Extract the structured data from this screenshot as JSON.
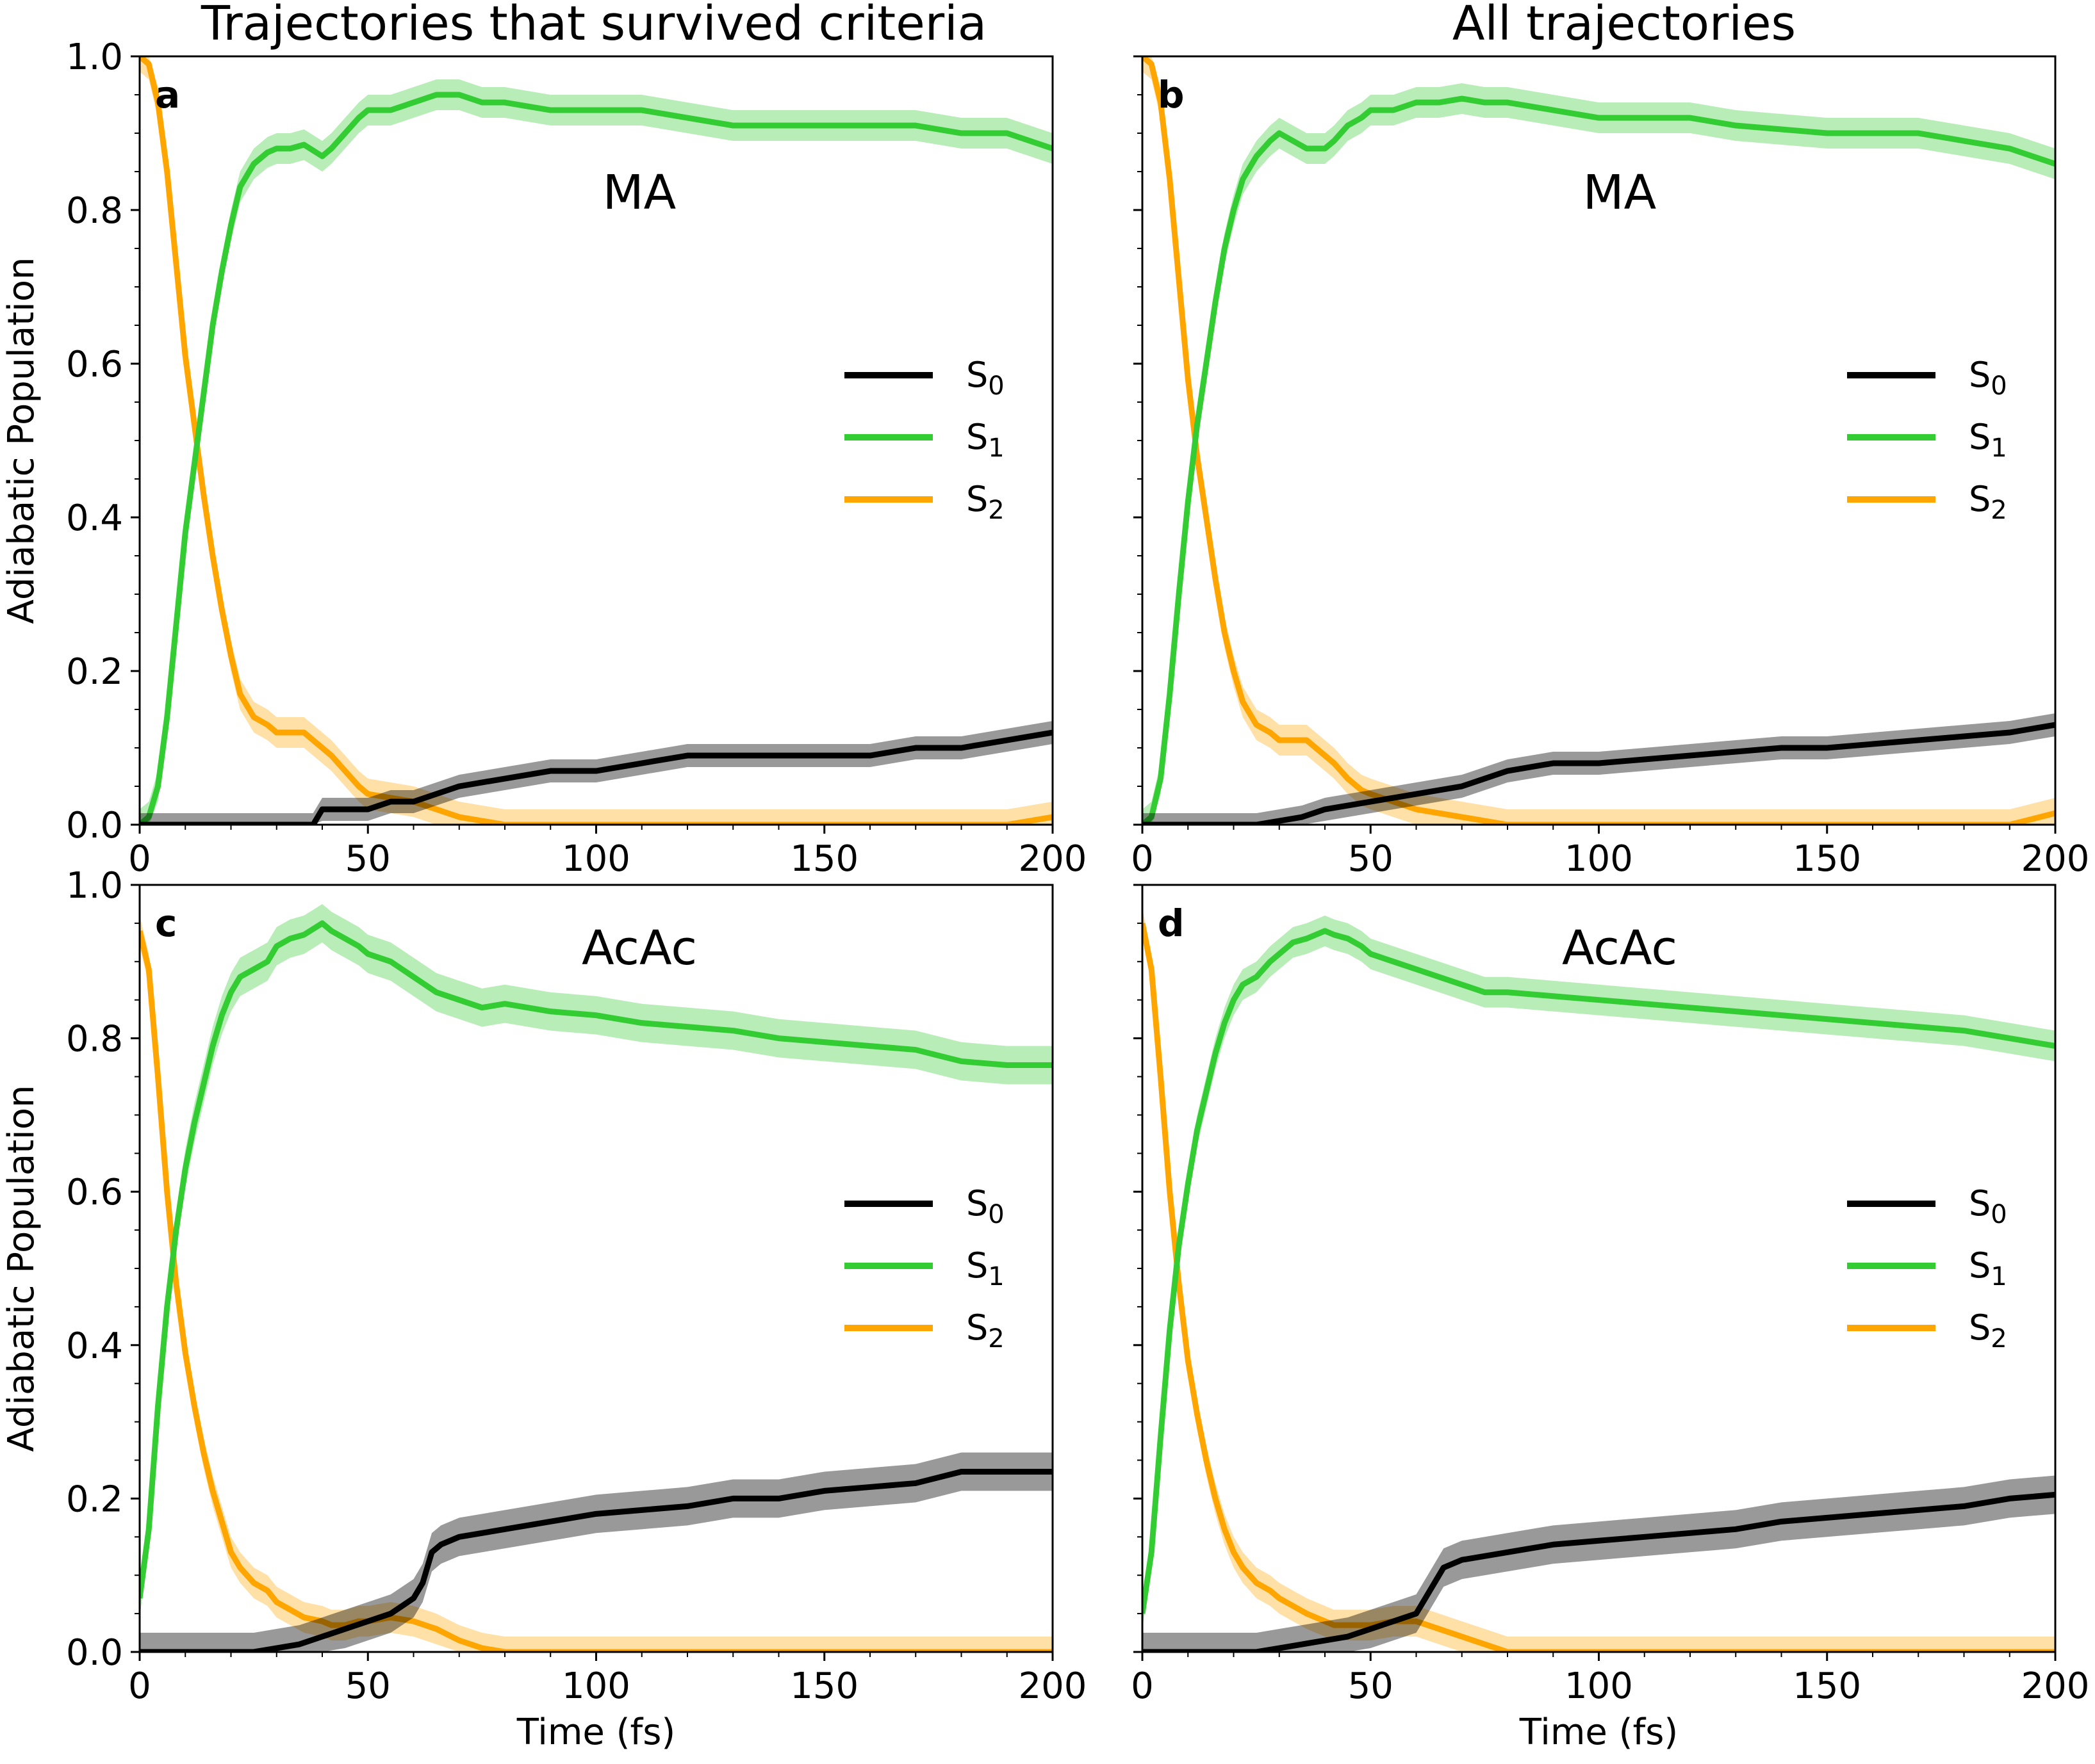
{
  "figure": {
    "column_titles": [
      "Trajectories that survived criteria",
      "All trajectories"
    ],
    "colors": {
      "S0": "#000000",
      "S1": "#33cc33",
      "S2": "#ffa500"
    }
  },
  "chart_data": [
    {
      "type": "line",
      "panel": "a",
      "molecule": "MA",
      "xlabel": "",
      "ylabel": "Adiabatic Population",
      "xlim": [
        0,
        200
      ],
      "ylim": [
        0,
        1.0
      ],
      "xticks": [
        "0",
        "50",
        "100",
        "150",
        "200"
      ],
      "yticks": [
        "0.0",
        "0.2",
        "0.4",
        "0.6",
        "0.8",
        "1.0"
      ],
      "legend": {
        "position": "center-right",
        "entries": [
          {
            "base": "S",
            "sub": "0"
          },
          {
            "base": "S",
            "sub": "1"
          },
          {
            "base": "S",
            "sub": "2"
          }
        ]
      },
      "series": [
        {
          "name": "S0",
          "band": 0.015,
          "x": [
            0,
            38,
            40,
            50,
            55,
            60,
            65,
            70,
            80,
            90,
            100,
            110,
            120,
            130,
            140,
            150,
            160,
            170,
            180,
            190,
            200
          ],
          "y": [
            0,
            0,
            0.02,
            0.02,
            0.03,
            0.03,
            0.04,
            0.05,
            0.06,
            0.07,
            0.07,
            0.08,
            0.09,
            0.09,
            0.09,
            0.09,
            0.09,
            0.1,
            0.1,
            0.11,
            0.12
          ]
        },
        {
          "name": "S1",
          "band": 0.02,
          "x": [
            0,
            2,
            4,
            6,
            8,
            10,
            12,
            14,
            16,
            18,
            20,
            22,
            25,
            28,
            30,
            33,
            36,
            40,
            42,
            45,
            48,
            50,
            55,
            60,
            65,
            70,
            75,
            80,
            90,
            100,
            110,
            120,
            130,
            140,
            150,
            160,
            170,
            180,
            190,
            200
          ],
          "y": [
            0,
            0.01,
            0.05,
            0.14,
            0.26,
            0.38,
            0.47,
            0.56,
            0.65,
            0.72,
            0.78,
            0.83,
            0.86,
            0.875,
            0.88,
            0.88,
            0.885,
            0.87,
            0.88,
            0.9,
            0.92,
            0.93,
            0.93,
            0.94,
            0.95,
            0.95,
            0.94,
            0.94,
            0.93,
            0.93,
            0.93,
            0.92,
            0.91,
            0.91,
            0.91,
            0.91,
            0.91,
            0.9,
            0.9,
            0.88
          ]
        },
        {
          "name": "S2",
          "band": 0.02,
          "x": [
            0,
            2,
            4,
            6,
            8,
            10,
            12,
            14,
            16,
            18,
            20,
            22,
            25,
            28,
            30,
            33,
            36,
            40,
            42,
            45,
            48,
            50,
            55,
            60,
            65,
            70,
            75,
            80,
            90,
            100,
            110,
            120,
            130,
            140,
            150,
            160,
            170,
            180,
            190,
            200
          ],
          "y": [
            1.0,
            0.99,
            0.94,
            0.85,
            0.73,
            0.61,
            0.52,
            0.43,
            0.35,
            0.28,
            0.22,
            0.17,
            0.14,
            0.13,
            0.12,
            0.12,
            0.12,
            0.1,
            0.09,
            0.07,
            0.05,
            0.04,
            0.035,
            0.03,
            0.02,
            0.01,
            0.005,
            0,
            0,
            0,
            0,
            0,
            0,
            0,
            0,
            0,
            0,
            0,
            0,
            0.01
          ]
        }
      ]
    },
    {
      "type": "line",
      "panel": "b",
      "molecule": "MA",
      "xlabel": "",
      "ylabel": "",
      "xlim": [
        0,
        200
      ],
      "ylim": [
        0,
        1.0
      ],
      "xticks": [
        "0",
        "50",
        "100",
        "150",
        "200"
      ],
      "yticks": [],
      "legend": {
        "position": "center-right",
        "entries": [
          {
            "base": "S",
            "sub": "0"
          },
          {
            "base": "S",
            "sub": "1"
          },
          {
            "base": "S",
            "sub": "2"
          }
        ]
      },
      "series": [
        {
          "name": "S0",
          "band": 0.015,
          "x": [
            0,
            25,
            30,
            35,
            40,
            45,
            50,
            55,
            60,
            70,
            80,
            90,
            100,
            110,
            120,
            130,
            140,
            150,
            160,
            170,
            180,
            190,
            200
          ],
          "y": [
            0,
            0,
            0.005,
            0.01,
            0.02,
            0.025,
            0.03,
            0.035,
            0.04,
            0.05,
            0.07,
            0.08,
            0.08,
            0.085,
            0.09,
            0.095,
            0.1,
            0.1,
            0.105,
            0.11,
            0.115,
            0.12,
            0.13
          ]
        },
        {
          "name": "S1",
          "band": 0.02,
          "x": [
            0,
            2,
            4,
            6,
            8,
            10,
            12,
            14,
            16,
            18,
            20,
            22,
            25,
            28,
            30,
            33,
            36,
            40,
            42,
            45,
            48,
            50,
            55,
            60,
            65,
            70,
            75,
            80,
            90,
            100,
            110,
            120,
            130,
            140,
            150,
            160,
            170,
            180,
            190,
            200
          ],
          "y": [
            0,
            0.01,
            0.06,
            0.17,
            0.3,
            0.42,
            0.52,
            0.6,
            0.68,
            0.75,
            0.8,
            0.84,
            0.87,
            0.89,
            0.9,
            0.89,
            0.88,
            0.88,
            0.89,
            0.91,
            0.92,
            0.93,
            0.93,
            0.94,
            0.94,
            0.945,
            0.94,
            0.94,
            0.93,
            0.92,
            0.92,
            0.92,
            0.91,
            0.905,
            0.9,
            0.9,
            0.9,
            0.89,
            0.88,
            0.86
          ]
        },
        {
          "name": "S2",
          "band": 0.02,
          "x": [
            0,
            2,
            4,
            6,
            8,
            10,
            12,
            14,
            16,
            18,
            20,
            22,
            25,
            28,
            30,
            33,
            36,
            40,
            42,
            45,
            48,
            50,
            55,
            60,
            65,
            70,
            75,
            80,
            90,
            100,
            110,
            120,
            130,
            140,
            150,
            160,
            170,
            180,
            190,
            200
          ],
          "y": [
            1.0,
            0.99,
            0.94,
            0.84,
            0.71,
            0.58,
            0.48,
            0.4,
            0.32,
            0.25,
            0.2,
            0.16,
            0.13,
            0.12,
            0.11,
            0.11,
            0.11,
            0.09,
            0.08,
            0.06,
            0.045,
            0.04,
            0.03,
            0.02,
            0.015,
            0.01,
            0.005,
            0,
            0,
            0,
            0,
            0,
            0,
            0,
            0,
            0,
            0,
            0,
            0,
            0.015
          ]
        }
      ]
    },
    {
      "type": "line",
      "panel": "c",
      "molecule": "AcAc",
      "xlabel": "Time (fs)",
      "ylabel": "Adiabatic Population",
      "xlim": [
        0,
        200
      ],
      "ylim": [
        0,
        1.0
      ],
      "xticks": [
        "0",
        "50",
        "100",
        "150",
        "200"
      ],
      "yticks": [
        "0.0",
        "0.2",
        "0.4",
        "0.6",
        "0.8",
        "1.0"
      ],
      "legend": {
        "position": "center-right",
        "entries": [
          {
            "base": "S",
            "sub": "0"
          },
          {
            "base": "S",
            "sub": "1"
          },
          {
            "base": "S",
            "sub": "2"
          }
        ]
      },
      "series": [
        {
          "name": "S0",
          "band": 0.025,
          "x": [
            0,
            25,
            30,
            35,
            40,
            45,
            50,
            55,
            60,
            62,
            64,
            66,
            70,
            80,
            90,
            100,
            110,
            120,
            130,
            140,
            150,
            160,
            170,
            180,
            190,
            200
          ],
          "y": [
            0,
            0,
            0.005,
            0.01,
            0.02,
            0.03,
            0.04,
            0.05,
            0.07,
            0.09,
            0.13,
            0.14,
            0.15,
            0.16,
            0.17,
            0.18,
            0.185,
            0.19,
            0.2,
            0.2,
            0.21,
            0.215,
            0.22,
            0.235,
            0.235,
            0.235
          ]
        },
        {
          "name": "S1",
          "band": 0.025,
          "x": [
            0,
            2,
            4,
            6,
            8,
            10,
            12,
            14,
            16,
            18,
            20,
            22,
            25,
            28,
            30,
            33,
            36,
            40,
            42,
            45,
            48,
            50,
            55,
            60,
            65,
            70,
            75,
            80,
            90,
            100,
            110,
            120,
            130,
            140,
            150,
            160,
            170,
            180,
            190,
            200
          ],
          "y": [
            0.07,
            0.16,
            0.32,
            0.45,
            0.55,
            0.63,
            0.69,
            0.74,
            0.79,
            0.83,
            0.86,
            0.88,
            0.89,
            0.9,
            0.92,
            0.93,
            0.935,
            0.95,
            0.94,
            0.93,
            0.92,
            0.91,
            0.9,
            0.88,
            0.86,
            0.85,
            0.84,
            0.845,
            0.835,
            0.83,
            0.82,
            0.815,
            0.81,
            0.8,
            0.795,
            0.79,
            0.785,
            0.77,
            0.765,
            0.765
          ]
        },
        {
          "name": "S2",
          "band": 0.02,
          "x": [
            0,
            2,
            4,
            6,
            8,
            10,
            12,
            14,
            16,
            18,
            20,
            22,
            25,
            28,
            30,
            33,
            36,
            40,
            42,
            45,
            48,
            50,
            55,
            60,
            65,
            70,
            75,
            80,
            90,
            100,
            110,
            120,
            130,
            140,
            150,
            160,
            170,
            180,
            190,
            200
          ],
          "y": [
            0.94,
            0.89,
            0.75,
            0.6,
            0.48,
            0.39,
            0.32,
            0.26,
            0.21,
            0.17,
            0.13,
            0.11,
            0.09,
            0.08,
            0.065,
            0.055,
            0.045,
            0.04,
            0.035,
            0.035,
            0.04,
            0.04,
            0.045,
            0.04,
            0.03,
            0.015,
            0.005,
            0,
            0,
            0,
            0,
            0,
            0,
            0,
            0,
            0,
            0,
            0,
            0,
            0
          ]
        }
      ]
    },
    {
      "type": "line",
      "panel": "d",
      "molecule": "AcAc",
      "xlabel": "Time (fs)",
      "ylabel": "",
      "xlim": [
        0,
        200
      ],
      "ylim": [
        0,
        1.0
      ],
      "xticks": [
        "0",
        "50",
        "100",
        "150",
        "200"
      ],
      "yticks": [],
      "legend": {
        "position": "center-right",
        "entries": [
          {
            "base": "S",
            "sub": "0"
          },
          {
            "base": "S",
            "sub": "1"
          },
          {
            "base": "S",
            "sub": "2"
          }
        ]
      },
      "series": [
        {
          "name": "S0",
          "band": 0.025,
          "x": [
            0,
            25,
            30,
            35,
            40,
            45,
            50,
            55,
            60,
            62,
            64,
            66,
            70,
            80,
            90,
            100,
            110,
            120,
            130,
            140,
            150,
            160,
            170,
            180,
            190,
            200
          ],
          "y": [
            0,
            0,
            0.005,
            0.01,
            0.015,
            0.02,
            0.03,
            0.04,
            0.05,
            0.07,
            0.09,
            0.11,
            0.12,
            0.13,
            0.14,
            0.145,
            0.15,
            0.155,
            0.16,
            0.17,
            0.175,
            0.18,
            0.185,
            0.19,
            0.2,
            0.205
          ]
        },
        {
          "name": "S1",
          "band": 0.02,
          "x": [
            0,
            2,
            4,
            6,
            8,
            10,
            12,
            14,
            16,
            18,
            20,
            22,
            25,
            28,
            30,
            33,
            36,
            40,
            42,
            45,
            48,
            50,
            55,
            60,
            65,
            70,
            75,
            80,
            90,
            100,
            110,
            120,
            130,
            140,
            150,
            160,
            170,
            180,
            190,
            200
          ],
          "y": [
            0.05,
            0.13,
            0.28,
            0.42,
            0.53,
            0.61,
            0.68,
            0.73,
            0.78,
            0.82,
            0.85,
            0.87,
            0.88,
            0.9,
            0.91,
            0.925,
            0.93,
            0.94,
            0.935,
            0.93,
            0.92,
            0.91,
            0.9,
            0.89,
            0.88,
            0.87,
            0.86,
            0.86,
            0.855,
            0.85,
            0.845,
            0.84,
            0.835,
            0.83,
            0.825,
            0.82,
            0.815,
            0.81,
            0.8,
            0.79
          ]
        },
        {
          "name": "S2",
          "band": 0.02,
          "x": [
            0,
            2,
            4,
            6,
            8,
            10,
            12,
            14,
            16,
            18,
            20,
            22,
            25,
            28,
            30,
            33,
            36,
            40,
            42,
            45,
            48,
            50,
            55,
            60,
            65,
            70,
            75,
            80,
            90,
            100,
            110,
            120,
            130,
            140,
            150,
            160,
            170,
            180,
            190,
            200
          ],
          "y": [
            0.95,
            0.89,
            0.75,
            0.6,
            0.48,
            0.38,
            0.31,
            0.25,
            0.2,
            0.16,
            0.13,
            0.11,
            0.09,
            0.08,
            0.07,
            0.06,
            0.05,
            0.04,
            0.035,
            0.035,
            0.035,
            0.035,
            0.04,
            0.04,
            0.03,
            0.02,
            0.01,
            0,
            0,
            0,
            0,
            0,
            0,
            0,
            0,
            0,
            0,
            0,
            0,
            0
          ]
        }
      ]
    }
  ]
}
